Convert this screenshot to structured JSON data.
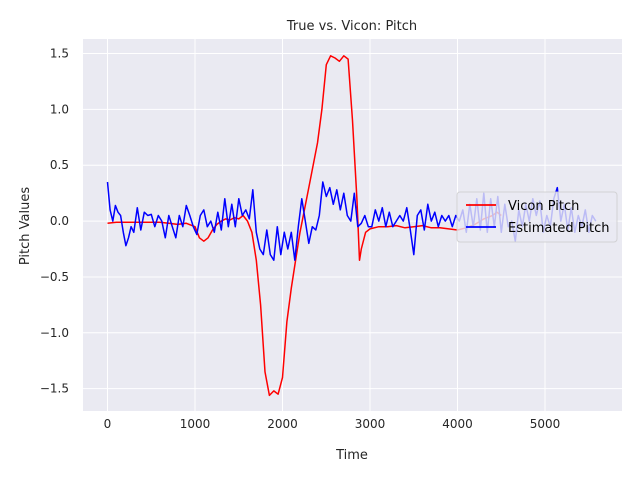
{
  "chart_data": {
    "type": "line",
    "title": "True vs. Vicon: Pitch",
    "xlabel": "Time",
    "ylabel": "Pitch Values",
    "xlim": [
      -280,
      5880
    ],
    "ylim": [
      -1.7,
      1.63
    ],
    "xticks": [
      0,
      1000,
      2000,
      3000,
      4000,
      5000
    ],
    "yticks": [
      -1.5,
      -1.0,
      -0.5,
      0.0,
      0.5,
      1.0,
      1.5
    ],
    "xtick_labels": [
      "0",
      "1000",
      "2000",
      "3000",
      "4000",
      "5000"
    ],
    "ytick_labels": [
      "−1.5",
      "−1.0",
      "−0.5",
      "0.0",
      "0.5",
      "1.0",
      "1.5"
    ],
    "grid": true,
    "background": "#eaeaf2",
    "legend": {
      "position": "center-right",
      "entries": [
        "Vicon Pitch",
        "Estimated Pitch"
      ]
    },
    "series": [
      {
        "name": "Vicon Pitch",
        "color": "#ff0000",
        "points": [
          [
            0,
            -0.02
          ],
          [
            100,
            -0.01
          ],
          [
            200,
            -0.01
          ],
          [
            300,
            -0.01
          ],
          [
            400,
            -0.01
          ],
          [
            500,
            -0.01
          ],
          [
            600,
            -0.01
          ],
          [
            700,
            -0.02
          ],
          [
            800,
            -0.03
          ],
          [
            900,
            -0.02
          ],
          [
            1000,
            -0.05
          ],
          [
            1050,
            -0.15
          ],
          [
            1100,
            -0.18
          ],
          [
            1150,
            -0.15
          ],
          [
            1200,
            -0.08
          ],
          [
            1250,
            -0.03
          ],
          [
            1300,
            0.0
          ],
          [
            1350,
            0.02
          ],
          [
            1400,
            0.01
          ],
          [
            1450,
            0.03
          ],
          [
            1500,
            0.02
          ],
          [
            1550,
            0.05
          ],
          [
            1600,
            0.0
          ],
          [
            1650,
            -0.1
          ],
          [
            1700,
            -0.35
          ],
          [
            1750,
            -0.75
          ],
          [
            1800,
            -1.35
          ],
          [
            1850,
            -1.56
          ],
          [
            1900,
            -1.52
          ],
          [
            1950,
            -1.55
          ],
          [
            2000,
            -1.4
          ],
          [
            2050,
            -0.9
          ],
          [
            2100,
            -0.6
          ],
          [
            2150,
            -0.35
          ],
          [
            2200,
            -0.1
          ],
          [
            2300,
            0.3
          ],
          [
            2400,
            0.7
          ],
          [
            2450,
            1.0
          ],
          [
            2500,
            1.4
          ],
          [
            2550,
            1.48
          ],
          [
            2600,
            1.46
          ],
          [
            2650,
            1.43
          ],
          [
            2700,
            1.48
          ],
          [
            2750,
            1.45
          ],
          [
            2800,
            0.9
          ],
          [
            2850,
            0.2
          ],
          [
            2880,
            -0.35
          ],
          [
            2900,
            -0.25
          ],
          [
            2950,
            -0.1
          ],
          [
            3000,
            -0.07
          ],
          [
            3100,
            -0.05
          ],
          [
            3200,
            -0.05
          ],
          [
            3300,
            -0.04
          ],
          [
            3400,
            -0.06
          ],
          [
            3500,
            -0.05
          ],
          [
            3600,
            -0.04
          ],
          [
            3700,
            -0.06
          ],
          [
            3800,
            -0.06
          ],
          [
            3900,
            -0.07
          ],
          [
            4000,
            -0.08
          ],
          [
            4100,
            -0.06
          ],
          [
            4200,
            -0.03
          ],
          [
            4300,
            0.02
          ],
          [
            4400,
            0.05
          ],
          [
            4450,
            0.08
          ],
          [
            4500,
            0.05
          ]
        ]
      },
      {
        "name": "Estimated Pitch",
        "color": "#0000ff",
        "points": [
          [
            0,
            0.35
          ],
          [
            30,
            0.1
          ],
          [
            60,
            0.0
          ],
          [
            90,
            0.14
          ],
          [
            120,
            0.08
          ],
          [
            150,
            0.05
          ],
          [
            180,
            -0.1
          ],
          [
            210,
            -0.22
          ],
          [
            240,
            -0.15
          ],
          [
            270,
            -0.05
          ],
          [
            300,
            -0.1
          ],
          [
            340,
            0.12
          ],
          [
            380,
            -0.08
          ],
          [
            420,
            0.08
          ],
          [
            460,
            0.05
          ],
          [
            500,
            0.06
          ],
          [
            540,
            -0.05
          ],
          [
            580,
            0.05
          ],
          [
            620,
            0.0
          ],
          [
            660,
            -0.15
          ],
          [
            700,
            0.05
          ],
          [
            740,
            -0.05
          ],
          [
            780,
            -0.15
          ],
          [
            820,
            0.05
          ],
          [
            860,
            -0.05
          ],
          [
            900,
            0.14
          ],
          [
            940,
            0.05
          ],
          [
            980,
            -0.05
          ],
          [
            1020,
            -0.12
          ],
          [
            1060,
            0.05
          ],
          [
            1100,
            0.1
          ],
          [
            1140,
            -0.05
          ],
          [
            1180,
            0.0
          ],
          [
            1220,
            -0.1
          ],
          [
            1260,
            0.08
          ],
          [
            1300,
            -0.08
          ],
          [
            1340,
            0.2
          ],
          [
            1380,
            -0.05
          ],
          [
            1420,
            0.15
          ],
          [
            1460,
            -0.05
          ],
          [
            1500,
            0.2
          ],
          [
            1540,
            0.05
          ],
          [
            1580,
            0.1
          ],
          [
            1620,
            0.02
          ],
          [
            1660,
            0.28
          ],
          [
            1700,
            -0.1
          ],
          [
            1740,
            -0.25
          ],
          [
            1780,
            -0.3
          ],
          [
            1820,
            -0.08
          ],
          [
            1860,
            -0.3
          ],
          [
            1900,
            -0.35
          ],
          [
            1940,
            -0.05
          ],
          [
            1980,
            -0.3
          ],
          [
            2020,
            -0.1
          ],
          [
            2060,
            -0.25
          ],
          [
            2100,
            -0.1
          ],
          [
            2140,
            -0.35
          ],
          [
            2180,
            -0.05
          ],
          [
            2220,
            0.2
          ],
          [
            2260,
            0.0
          ],
          [
            2300,
            -0.2
          ],
          [
            2340,
            -0.05
          ],
          [
            2380,
            -0.08
          ],
          [
            2420,
            0.05
          ],
          [
            2460,
            0.35
          ],
          [
            2500,
            0.22
          ],
          [
            2540,
            0.3
          ],
          [
            2580,
            0.15
          ],
          [
            2620,
            0.28
          ],
          [
            2660,
            0.1
          ],
          [
            2700,
            0.25
          ],
          [
            2740,
            0.05
          ],
          [
            2780,
            0.0
          ],
          [
            2820,
            0.25
          ],
          [
            2860,
            -0.05
          ],
          [
            2900,
            -0.02
          ],
          [
            2940,
            0.05
          ],
          [
            2980,
            -0.05
          ],
          [
            3020,
            -0.05
          ],
          [
            3060,
            0.1
          ],
          [
            3100,
            0.0
          ],
          [
            3140,
            0.12
          ],
          [
            3180,
            -0.05
          ],
          [
            3220,
            0.08
          ],
          [
            3260,
            -0.05
          ],
          [
            3300,
            0.0
          ],
          [
            3340,
            0.05
          ],
          [
            3380,
            0.0
          ],
          [
            3420,
            0.12
          ],
          [
            3460,
            -0.08
          ],
          [
            3500,
            -0.3
          ],
          [
            3540,
            0.05
          ],
          [
            3580,
            0.1
          ],
          [
            3620,
            -0.08
          ],
          [
            3660,
            0.15
          ],
          [
            3700,
            0.0
          ],
          [
            3740,
            0.08
          ],
          [
            3780,
            -0.05
          ],
          [
            3820,
            0.05
          ],
          [
            3860,
            0.0
          ],
          [
            3900,
            0.05
          ],
          [
            3940,
            -0.05
          ],
          [
            3980,
            0.05
          ],
          [
            4020,
            0.0
          ],
          [
            4060,
            0.1
          ],
          [
            4100,
            -0.1
          ],
          [
            4140,
            0.15
          ],
          [
            4180,
            -0.05
          ],
          [
            4220,
            0.2
          ],
          [
            4260,
            -0.08
          ],
          [
            4300,
            0.25
          ],
          [
            4340,
            -0.1
          ],
          [
            4380,
            0.2
          ],
          [
            4420,
            -0.05
          ],
          [
            4460,
            0.22
          ],
          [
            4500,
            -0.1
          ],
          [
            4540,
            0.15
          ],
          [
            4580,
            -0.05
          ],
          [
            4620,
            0.0
          ],
          [
            4660,
            -0.18
          ],
          [
            4700,
            0.1
          ],
          [
            4740,
            -0.05
          ],
          [
            4780,
            0.15
          ],
          [
            4820,
            0.0
          ],
          [
            4860,
            0.2
          ],
          [
            4900,
            0.05
          ],
          [
            4940,
            0.18
          ],
          [
            4980,
            -0.1
          ],
          [
            5020,
            0.05
          ],
          [
            5060,
            -0.05
          ],
          [
            5100,
            0.2
          ],
          [
            5140,
            0.3
          ],
          [
            5180,
            0.0
          ],
          [
            5220,
            0.15
          ],
          [
            5260,
            -0.08
          ],
          [
            5300,
            0.12
          ],
          [
            5340,
            -0.1
          ],
          [
            5380,
            0.05
          ],
          [
            5420,
            -0.05
          ],
          [
            5460,
            0.1
          ],
          [
            5500,
            -0.1
          ],
          [
            5540,
            0.05
          ],
          [
            5580,
            0.0
          ]
        ]
      }
    ]
  }
}
